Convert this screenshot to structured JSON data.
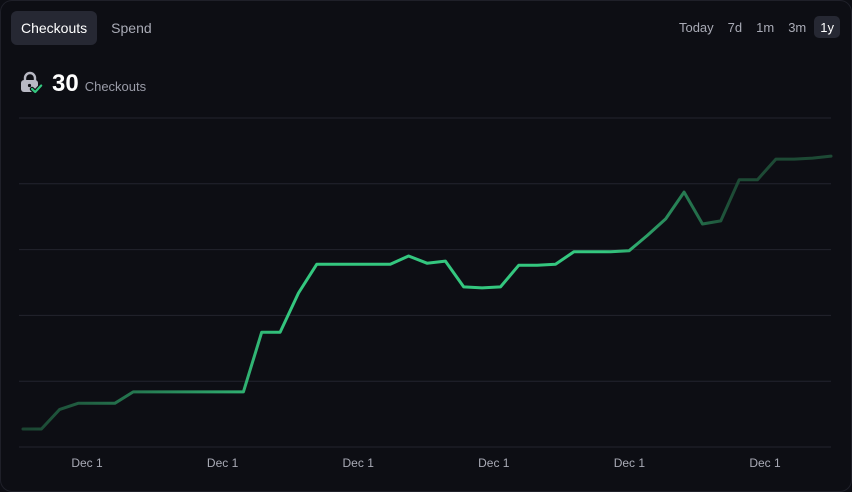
{
  "tabs": [
    {
      "label": "Checkouts",
      "active": true
    },
    {
      "label": "Spend",
      "active": false
    }
  ],
  "ranges": [
    {
      "label": "Today",
      "active": false
    },
    {
      "label": "7d",
      "active": false
    },
    {
      "label": "1m",
      "active": false
    },
    {
      "label": "3m",
      "active": false
    },
    {
      "label": "1y",
      "active": true
    }
  ],
  "metric": {
    "icon": "lock-check-icon",
    "value": "30",
    "label": "Checkouts"
  },
  "chart_data": {
    "type": "line",
    "x_ticks": [
      "Dec 1",
      "Dec 1",
      "Dec 1",
      "Dec 1",
      "Dec 1",
      "Dec 1"
    ],
    "series": [
      {
        "color": "#34c77f",
        "fade_color": "#1d4a35",
        "values": [
          0.0,
          0.0,
          1.9,
          2.5,
          2.5,
          2.5,
          3.6,
          3.6,
          3.6,
          3.6,
          3.6,
          3.6,
          3.6,
          9.4,
          9.4,
          13.2,
          16.0,
          16.0,
          16.0,
          16.0,
          16.0,
          16.8,
          16.1,
          16.3,
          13.8,
          13.7,
          13.8,
          15.9,
          15.9,
          16.0,
          17.2,
          17.2,
          17.2,
          17.3,
          18.8,
          20.4,
          23.0,
          19.9,
          20.2,
          24.2,
          24.2,
          26.2,
          26.2,
          26.3,
          26.5
        ]
      }
    ],
    "ylim": [
      0,
      30
    ],
    "grid": true
  }
}
